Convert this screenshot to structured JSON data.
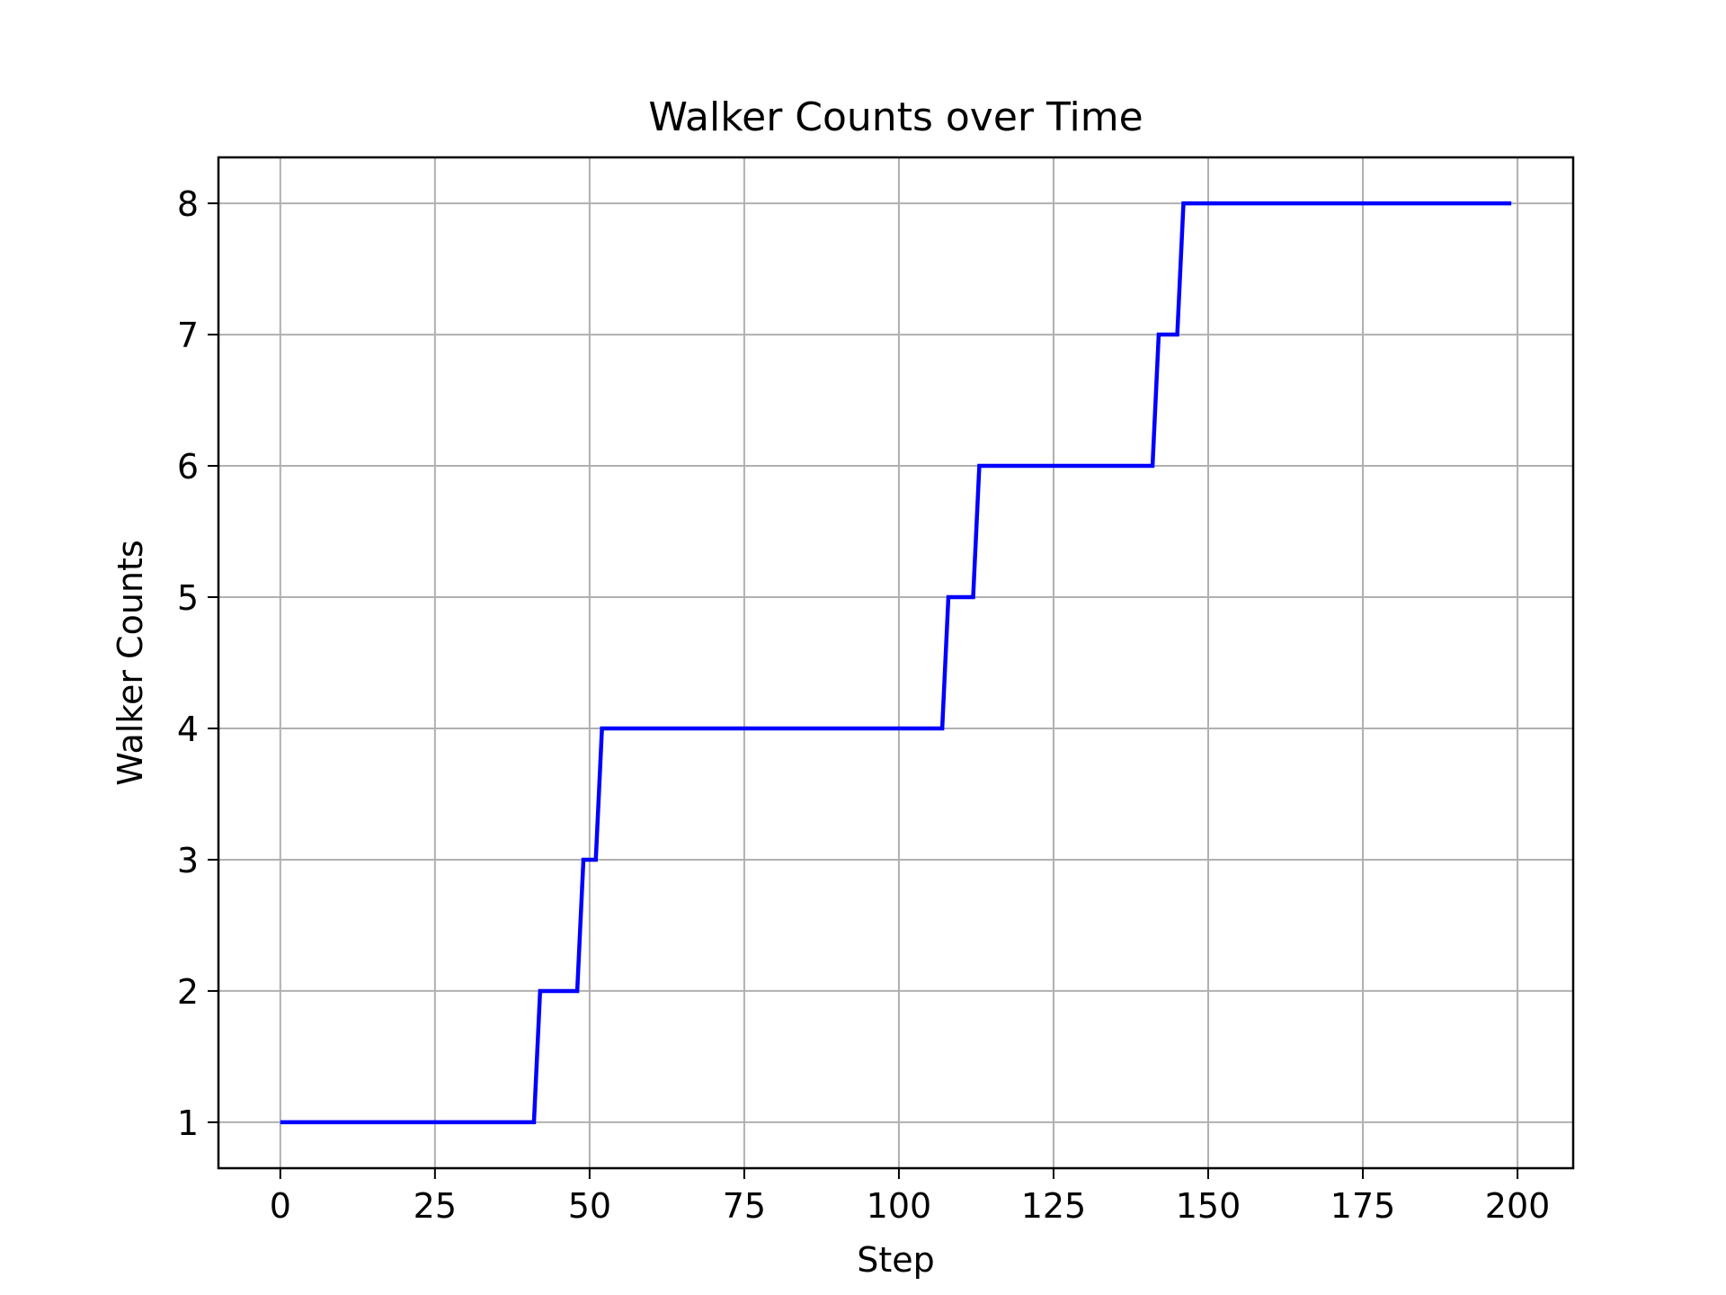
{
  "chart_data": {
    "type": "line",
    "title": "Walker Counts over Time",
    "xlabel": "Step",
    "ylabel": "Walker Counts",
    "xlim": [
      -10,
      209
    ],
    "ylim": [
      0.65,
      8.35
    ],
    "xticks": [
      0,
      25,
      50,
      75,
      100,
      125,
      150,
      175,
      200
    ],
    "yticks": [
      1,
      2,
      3,
      4,
      5,
      6,
      7,
      8
    ],
    "xtick_labels": [
      "0",
      "25",
      "50",
      "75",
      "100",
      "125",
      "150",
      "175",
      "200"
    ],
    "ytick_labels": [
      "1",
      "2",
      "3",
      "4",
      "5",
      "6",
      "7",
      "8"
    ],
    "grid": true,
    "legend": "none",
    "colors": {
      "line": "#0000ff",
      "grid": "#b0b0b0",
      "axes": "#000000"
    },
    "series": [
      {
        "points": [
          [
            0,
            1
          ],
          [
            41,
            1
          ],
          [
            42,
            2
          ],
          [
            48,
            2
          ],
          [
            49,
            3
          ],
          [
            51,
            3
          ],
          [
            52,
            4
          ],
          [
            107,
            4
          ],
          [
            108,
            5
          ],
          [
            112,
            5
          ],
          [
            113,
            6
          ],
          [
            141,
            6
          ],
          [
            142,
            7
          ],
          [
            145,
            7
          ],
          [
            146,
            8
          ],
          [
            199,
            8
          ]
        ]
      }
    ]
  }
}
